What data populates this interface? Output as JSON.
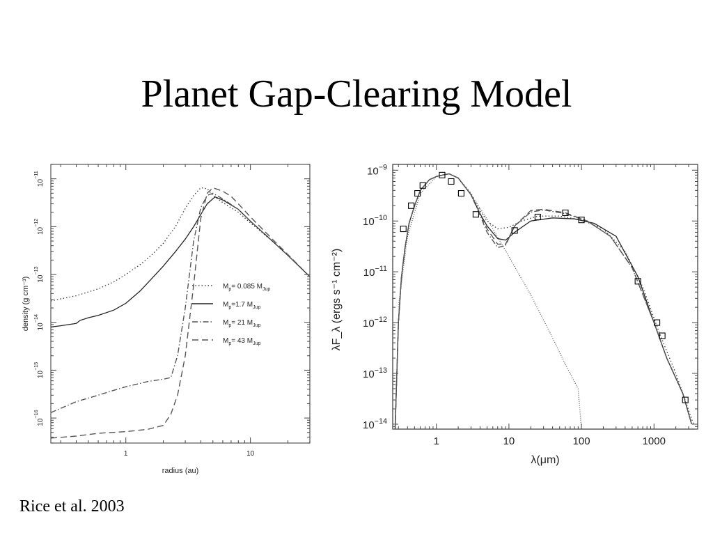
{
  "slide": {
    "title": "Planet Gap-Clearing Model",
    "citation": "Rice et al. 2003"
  },
  "chart_data": [
    {
      "type": "line",
      "xlabel": "radius (au)",
      "ylabel": "density (g cm⁻³)",
      "xscale": "log",
      "yscale": "log",
      "xlim": [
        0.25,
        30
      ],
      "ylim": [
        3e-17,
        2e-11
      ],
      "x_ticks": [
        {
          "value": 1,
          "label": "1"
        },
        {
          "value": 10,
          "label": "10"
        }
      ],
      "y_ticks": [
        {
          "value": 1e-16,
          "mant": "10",
          "exp": "−16"
        },
        {
          "value": 1e-15,
          "mant": "10",
          "exp": "−15"
        },
        {
          "value": 1e-14,
          "mant": "10",
          "exp": "−14"
        },
        {
          "value": 1e-13,
          "mant": "10",
          "exp": "−13"
        },
        {
          "value": 1e-12,
          "mant": "10",
          "exp": "−12"
        },
        {
          "value": 1e-11,
          "mant": "10",
          "exp": "−11"
        }
      ],
      "legend_position": "right-middle",
      "series": [
        {
          "name": "Mp= 0.085 MJup",
          "label_main": "M",
          "label_sub": "p",
          "label_mid": "= 0.085 M",
          "label_sub2": "Jup",
          "dash": "dotted",
          "points": [
            [
              0.25,
              2.8e-14
            ],
            [
              0.4,
              3.6e-14
            ],
            [
              0.6,
              5e-14
            ],
            [
              0.8,
              7e-14
            ],
            [
              1,
              1e-13
            ],
            [
              1.3,
              1.6e-13
            ],
            [
              1.6,
              2.5e-13
            ],
            [
              2,
              4.5e-13
            ],
            [
              2.5,
              1e-12
            ],
            [
              3,
              2.4e-12
            ],
            [
              3.5,
              4.5e-12
            ],
            [
              4,
              6.5e-12
            ],
            [
              4.5,
              6.2e-12
            ],
            [
              5,
              4.5e-12
            ],
            [
              6,
              3.2e-12
            ],
            [
              8,
              2e-12
            ],
            [
              10,
              1.2e-12
            ],
            [
              15,
              5e-13
            ],
            [
              20,
              2.5e-13
            ],
            [
              30,
              9e-14
            ]
          ]
        },
        {
          "name": "Mp=1.7 MJup",
          "label_main": "M",
          "label_sub": "p",
          "label_mid": "=1.7 M",
          "label_sub2": "Jup",
          "dash": "solid",
          "points": [
            [
              0.25,
              8e-15
            ],
            [
              0.3,
              8.5e-15
            ],
            [
              0.4,
              9.5e-15
            ],
            [
              0.43,
              1.1e-14
            ],
            [
              0.5,
              1.25e-14
            ],
            [
              0.6,
              1.4e-14
            ],
            [
              0.8,
              1.8e-14
            ],
            [
              1,
              2.5e-14
            ],
            [
              1.3,
              4.5e-14
            ],
            [
              1.6,
              8e-14
            ],
            [
              2,
              1.5e-13
            ],
            [
              2.5,
              3e-13
            ],
            [
              3,
              5.5e-13
            ],
            [
              3.5,
              1e-12
            ],
            [
              4,
              1.8e-12
            ],
            [
              4.5,
              3e-12
            ],
            [
              5.2,
              4.2e-12
            ],
            [
              6,
              3.6e-12
            ],
            [
              8,
              2.3e-12
            ],
            [
              10,
              1.3e-12
            ],
            [
              15,
              5e-13
            ],
            [
              20,
              2.5e-13
            ],
            [
              30,
              9e-14
            ]
          ]
        },
        {
          "name": "Mp= 21 MJup",
          "label_main": "M",
          "label_sub": "p",
          "label_mid": "= 21 M",
          "label_sub2": "Jup",
          "dash": "dashdot",
          "points": [
            [
              0.25,
              1.3e-16
            ],
            [
              0.4,
              2.2e-16
            ],
            [
              0.6,
              3e-16
            ],
            [
              0.8,
              3.8e-16
            ],
            [
              1,
              4.5e-16
            ],
            [
              1.5,
              5.8e-16
            ],
            [
              2,
              6.5e-16
            ],
            [
              2.3,
              7e-16
            ],
            [
              2.6,
              2e-15
            ],
            [
              3,
              2e-14
            ],
            [
              3.5,
              5e-13
            ],
            [
              4,
              2.5e-12
            ],
            [
              4.5,
              4.5e-12
            ],
            [
              5,
              5e-12
            ],
            [
              6,
              3.8e-12
            ],
            [
              8,
              2.3e-12
            ],
            [
              10,
              1.3e-12
            ],
            [
              15,
              5e-13
            ],
            [
              20,
              2.5e-13
            ],
            [
              30,
              9e-14
            ]
          ]
        },
        {
          "name": "Mp= 43 MJup",
          "label_main": "M",
          "label_sub": "p",
          "label_mid": "= 43 M",
          "label_sub2": "Jup",
          "dash": "dashed",
          "points": [
            [
              0.25,
              3.8e-17
            ],
            [
              0.4,
              4.2e-17
            ],
            [
              0.6,
              4.8e-17
            ],
            [
              1,
              5.2e-17
            ],
            [
              1.5,
              5.8e-17
            ],
            [
              2,
              7e-17
            ],
            [
              2.3,
              1.2e-16
            ],
            [
              2.6,
              3e-16
            ],
            [
              3,
              2e-15
            ],
            [
              3.5,
              6e-14
            ],
            [
              4,
              1.5e-12
            ],
            [
              4.5,
              5e-12
            ],
            [
              5,
              6.5e-12
            ],
            [
              6,
              5.5e-12
            ],
            [
              7,
              4.3e-12
            ],
            [
              8,
              3e-12
            ],
            [
              10,
              1.6e-12
            ],
            [
              15,
              5.5e-13
            ],
            [
              20,
              2.6e-13
            ],
            [
              30,
              9e-14
            ]
          ]
        }
      ]
    },
    {
      "type": "line",
      "xlabel": "λ(μm)",
      "ylabel": "λF_λ (ergs s⁻¹ cm⁻²)",
      "xscale": "log",
      "yscale": "log",
      "xlim": [
        0.25,
        4000
      ],
      "ylim": [
        8e-15,
        1.3e-09
      ],
      "x_ticks": [
        {
          "value": 1,
          "label": "1"
        },
        {
          "value": 10,
          "label": "10"
        },
        {
          "value": 100,
          "label": "100"
        },
        {
          "value": 1000,
          "label": "1000"
        }
      ],
      "y_ticks": [
        {
          "value": 1e-14,
          "mant": "10",
          "exp": "−14"
        },
        {
          "value": 1e-13,
          "mant": "10",
          "exp": "−13"
        },
        {
          "value": 1e-12,
          "mant": "10",
          "exp": "−12"
        },
        {
          "value": 1e-11,
          "mant": "10",
          "exp": "−11"
        },
        {
          "value": 1e-10,
          "mant": "10",
          "exp": "−10"
        },
        {
          "value": 1e-09,
          "mant": "10",
          "exp": "−9"
        }
      ],
      "series": [
        {
          "dash": "solid",
          "points": [
            [
              0.27,
              8e-15
            ],
            [
              0.3,
              1e-12
            ],
            [
              0.33,
              8e-12
            ],
            [
              0.37,
              3e-11
            ],
            [
              0.42,
              9e-11
            ],
            [
              0.5,
              2e-10
            ],
            [
              0.6,
              4e-10
            ],
            [
              0.8,
              6.5e-10
            ],
            [
              1,
              7.5e-10
            ],
            [
              1.2,
              8e-10
            ],
            [
              1.5,
              8.5e-10
            ],
            [
              2,
              7e-10
            ],
            [
              3,
              3.3e-10
            ],
            [
              4,
              1.4e-10
            ],
            [
              5,
              8e-11
            ],
            [
              7,
              4.5e-11
            ],
            [
              9,
              4.2e-11
            ],
            [
              12,
              6e-11
            ],
            [
              20,
              1e-10
            ],
            [
              40,
              1.15e-10
            ],
            [
              80,
              1.1e-10
            ],
            [
              150,
              9e-11
            ],
            [
              300,
              5e-11
            ],
            [
              600,
              8e-12
            ],
            [
              1000,
              1e-12
            ],
            [
              1500,
              2e-13
            ],
            [
              2500,
              4e-14
            ],
            [
              3300,
              1e-14
            ]
          ]
        },
        {
          "dash": "dotted",
          "points": [
            [
              0.27,
              8e-15
            ],
            [
              0.3,
              1e-12
            ],
            [
              0.33,
              8e-12
            ],
            [
              0.37,
              3e-11
            ],
            [
              0.42,
              9e-11
            ],
            [
              0.5,
              2e-10
            ],
            [
              0.6,
              4e-10
            ],
            [
              0.8,
              6.5e-10
            ],
            [
              1,
              7.5e-10
            ],
            [
              1.2,
              8e-10
            ],
            [
              1.5,
              8.5e-10
            ],
            [
              2,
              7e-10
            ],
            [
              3,
              3.5e-10
            ],
            [
              4,
              1.6e-10
            ],
            [
              5,
              1e-10
            ],
            [
              7,
              7e-11
            ],
            [
              10,
              7.5e-11
            ],
            [
              15,
              1e-10
            ],
            [
              25,
              1.25e-10
            ],
            [
              50,
              1.25e-10
            ],
            [
              100,
              1.05e-10
            ],
            [
              200,
              7e-11
            ],
            [
              400,
              2.5e-11
            ],
            [
              700,
              5e-12
            ],
            [
              1200,
              6e-13
            ],
            [
              2000,
              1e-13
            ],
            [
              3500,
              1e-14
            ]
          ]
        },
        {
          "dash": "dashed",
          "points": [
            [
              0.27,
              8e-15
            ],
            [
              0.3,
              1e-12
            ],
            [
              0.33,
              8e-12
            ],
            [
              0.37,
              3e-11
            ],
            [
              0.42,
              9e-11
            ],
            [
              0.5,
              2e-10
            ],
            [
              0.6,
              4e-10
            ],
            [
              0.8,
              6.5e-10
            ],
            [
              1,
              7.5e-10
            ],
            [
              1.2,
              8e-10
            ],
            [
              1.5,
              8.5e-10
            ],
            [
              2,
              7e-10
            ],
            [
              3,
              3.3e-10
            ],
            [
              4,
              1.4e-10
            ],
            [
              5,
              7e-11
            ],
            [
              7,
              3.5e-11
            ],
            [
              9,
              3.5e-11
            ],
            [
              12,
              8e-11
            ],
            [
              20,
              1.6e-10
            ],
            [
              30,
              1.7e-10
            ],
            [
              60,
              1.45e-10
            ],
            [
              120,
              1e-10
            ],
            [
              250,
              5e-11
            ],
            [
              500,
              1.2e-11
            ],
            [
              1000,
              1e-12
            ],
            [
              1500,
              2e-13
            ],
            [
              2500,
              4e-14
            ],
            [
              3300,
              1e-14
            ]
          ]
        },
        {
          "dash": "dashdot",
          "points": [
            [
              0.27,
              8e-15
            ],
            [
              0.3,
              1e-12
            ],
            [
              0.33,
              8e-12
            ],
            [
              0.37,
              3e-11
            ],
            [
              0.42,
              9e-11
            ],
            [
              0.5,
              2e-10
            ],
            [
              0.6,
              4e-10
            ],
            [
              0.8,
              6.5e-10
            ],
            [
              1,
              7.5e-10
            ],
            [
              1.2,
              8e-10
            ],
            [
              1.5,
              8.5e-10
            ],
            [
              2,
              7e-10
            ],
            [
              3,
              3.3e-10
            ],
            [
              4,
              1.3e-10
            ],
            [
              5,
              6e-11
            ],
            [
              7,
              3e-11
            ],
            [
              9,
              3.3e-11
            ],
            [
              12,
              8e-11
            ],
            [
              20,
              1.5e-10
            ],
            [
              30,
              1.65e-10
            ],
            [
              60,
              1.4e-10
            ],
            [
              120,
              1e-10
            ],
            [
              250,
              5e-11
            ],
            [
              500,
              1.2e-11
            ],
            [
              1000,
              1e-12
            ],
            [
              1500,
              2e-13
            ],
            [
              2500,
              4e-14
            ],
            [
              3300,
              1e-14
            ]
          ]
        },
        {
          "dash": "dotted-thin",
          "points": [
            [
              0.3,
              2e-12
            ],
            [
              0.4,
              5e-11
            ],
            [
              0.6,
              3.5e-10
            ],
            [
              1,
              7.5e-10
            ],
            [
              1.5,
              8.5e-10
            ],
            [
              2,
              7e-10
            ],
            [
              3,
              3.3e-10
            ],
            [
              5,
              1.1e-10
            ],
            [
              10,
              2e-11
            ],
            [
              20,
              3.5e-12
            ],
            [
              40,
              5e-13
            ],
            [
              60,
              1.5e-13
            ],
            [
              90,
              5e-14
            ],
            [
              100,
              8e-15
            ]
          ]
        }
      ],
      "observations": [
        [
          0.35,
          7e-11
        ],
        [
          0.45,
          2e-10
        ],
        [
          0.55,
          3.5e-10
        ],
        [
          0.65,
          5e-10
        ],
        [
          1.2,
          8e-10
        ],
        [
          1.6,
          6e-10
        ],
        [
          2.2,
          3.5e-10
        ],
        [
          3.5,
          1.35e-10
        ],
        [
          12,
          6.5e-11
        ],
        [
          25,
          1.2e-10
        ],
        [
          60,
          1.45e-10
        ],
        [
          100,
          1.05e-10
        ],
        [
          600,
          6.5e-12
        ],
        [
          1100,
          1e-12
        ],
        [
          1300,
          5.5e-13
        ],
        [
          2700,
          3e-14
        ]
      ]
    }
  ]
}
